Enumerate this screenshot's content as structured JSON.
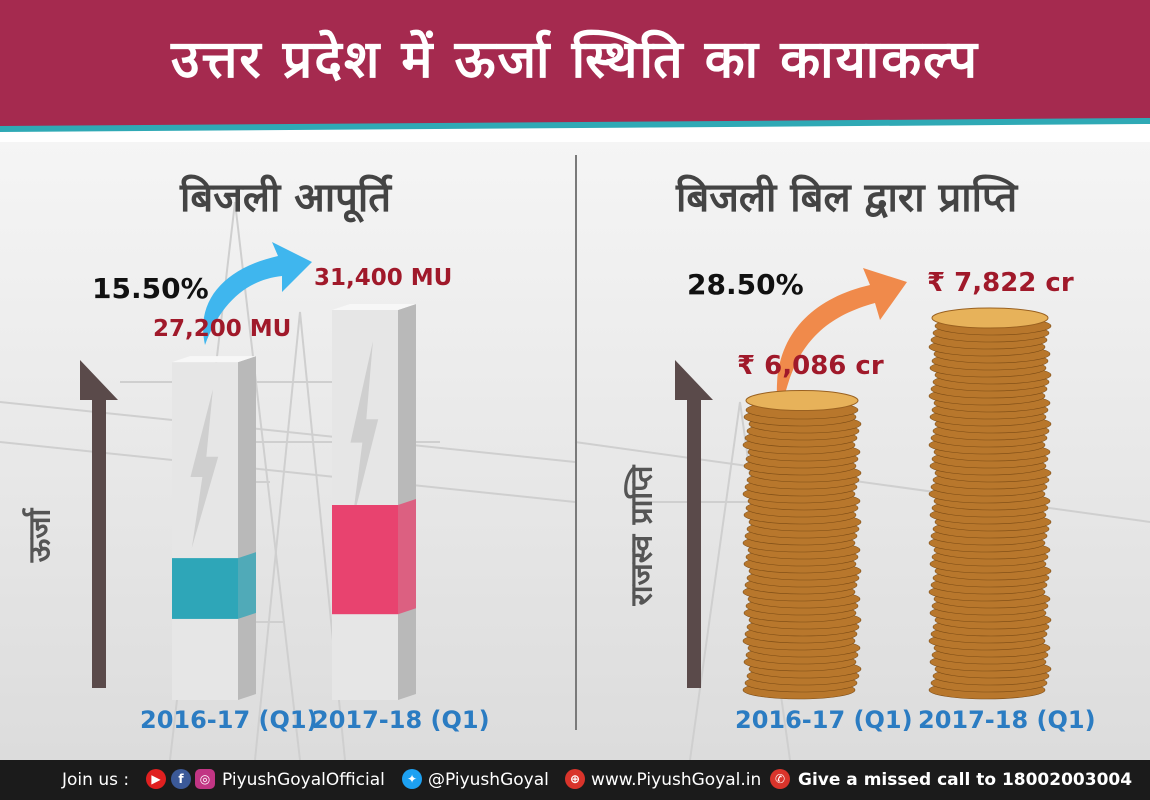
{
  "title": "उत्तर प्रदेश में ऊर्जा स्थिति का कायाकल्प",
  "colors": {
    "header": "#a52a4f",
    "teal": "#2ea6b8",
    "pink": "#e8436f",
    "value_red": "#a0192a",
    "year_blue": "#2b7cc2",
    "arrow_dark": "#5a4a4a",
    "arrow_blue": "#3fb6ee",
    "arrow_orange": "#f08a4b"
  },
  "supply": {
    "heading": "बिजली आपूर्ति",
    "growth": "15.50%",
    "axis_label": "ऊर्जा"
  },
  "revenue": {
    "heading": "बिजली बिल द्वारा प्राप्ति",
    "growth": "28.50%",
    "axis_label": "राजस्व प्राप्ति"
  },
  "chart_data": [
    {
      "type": "bar",
      "title": "बिजली आपूर्ति",
      "ylabel": "ऊर्जा",
      "categories": [
        "2016-17 (Q1)",
        "2017-18 (Q1)"
      ],
      "values": [
        27200,
        31400
      ],
      "value_labels": [
        "27,200 MU",
        "31,400 MU"
      ],
      "annotation": "15.50%"
    },
    {
      "type": "bar",
      "title": "बिजली बिल द्वारा प्राप्ति",
      "ylabel": "राजस्व प्राप्ति",
      "categories": [
        "2016-17 (Q1)",
        "2017-18 (Q1)"
      ],
      "values": [
        6086,
        7822
      ],
      "value_labels": [
        "₹ 6,086 cr",
        "₹ 7,822 cr"
      ],
      "annotation": "28.50%"
    }
  ],
  "footer": {
    "join_us": "Join us :",
    "channel": "PiyushGoyalOfficial",
    "twitter": "@PiyushGoyal",
    "website": "www.PiyushGoyal.in",
    "missed_call": "Give a missed call to 18002003004",
    "icons": [
      "youtube-icon",
      "facebook-icon",
      "instagram-icon",
      "twitter-icon",
      "globe-icon",
      "phone-icon"
    ]
  }
}
